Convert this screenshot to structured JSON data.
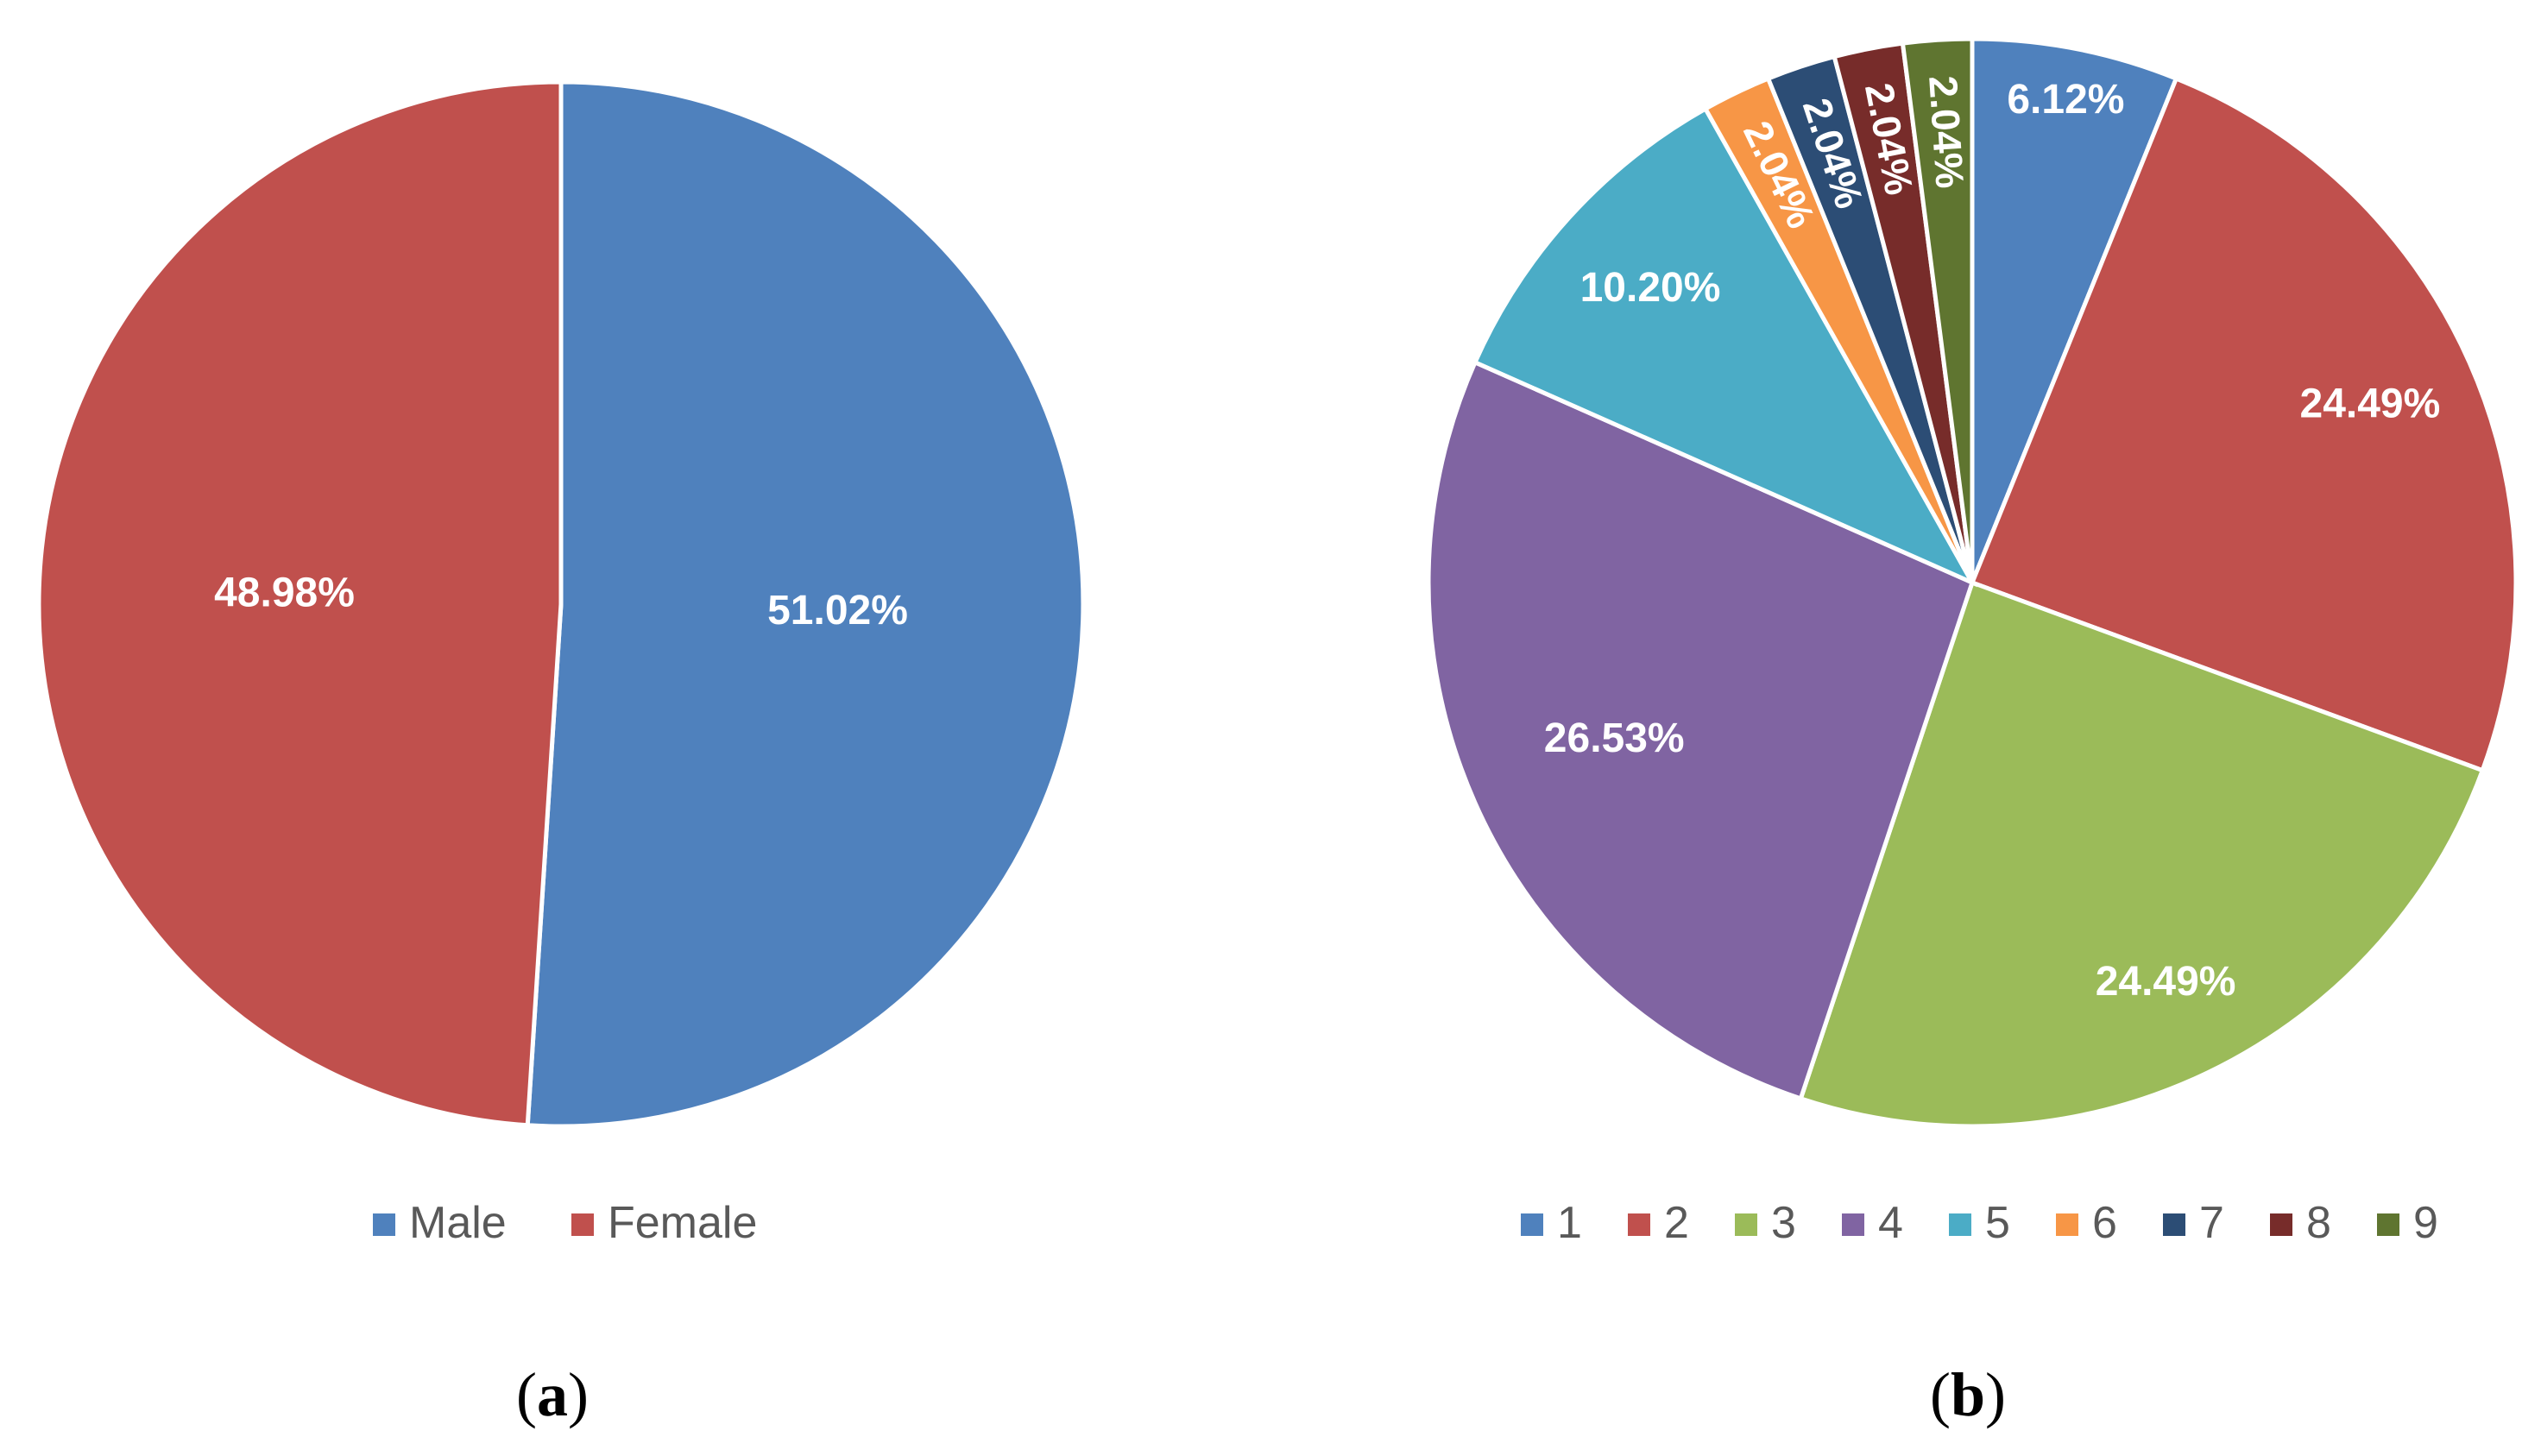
{
  "chart_data": [
    {
      "type": "pie",
      "panel_label": "a",
      "categories": [
        "Male",
        "Female"
      ],
      "values": [
        51.02,
        48.98
      ],
      "data_labels": [
        "51.02%",
        "48.98%"
      ],
      "colors": [
        "#4F81BD",
        "#C0504D"
      ],
      "legend": "bottom"
    },
    {
      "type": "pie",
      "panel_label": "b",
      "categories": [
        "1",
        "2",
        "3",
        "4",
        "5",
        "6",
        "7",
        "8",
        "9"
      ],
      "values": [
        6.12,
        24.49,
        24.49,
        26.53,
        10.2,
        2.04,
        2.04,
        2.04,
        2.04
      ],
      "data_labels": [
        "6.12%",
        "24.49%",
        "24.49%",
        "26.53%",
        "10.20%",
        "2.04%",
        "2.04%",
        "2.04%",
        "2.04%"
      ],
      "colors": [
        "#4F81BD",
        "#C0504D",
        "#9BBB59",
        "#8064A2",
        "#4BACC6",
        "#F79646",
        "#2C4D75",
        "#772C2A",
        "#5F7530"
      ],
      "legend": "bottom"
    }
  ]
}
